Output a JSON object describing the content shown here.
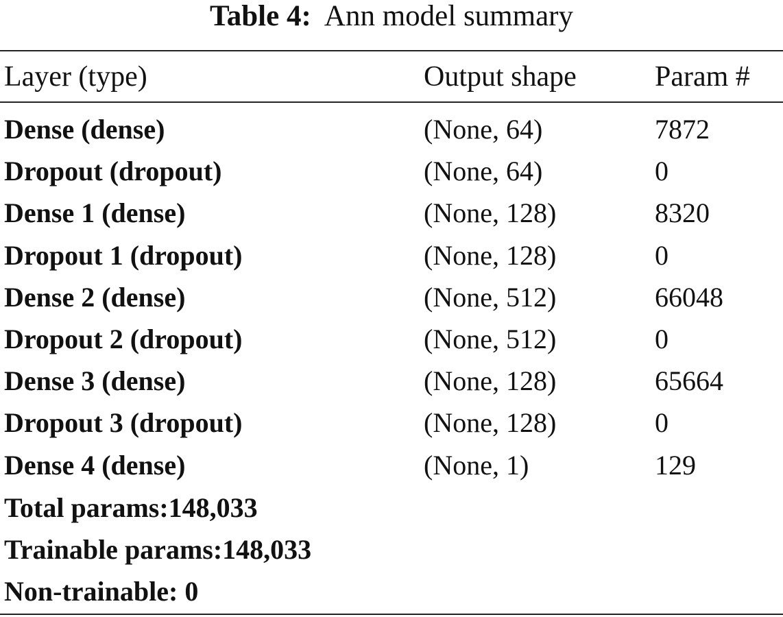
{
  "caption": {
    "label": "Table 4:",
    "title": "Ann model summary"
  },
  "table": {
    "headers": [
      "Layer (type)",
      "Output shape",
      "Param #"
    ],
    "rows": [
      [
        "Dense (dense)",
        "(None, 64)",
        "7872"
      ],
      [
        "Dropout (dropout)",
        "(None, 64)",
        "0"
      ],
      [
        "Dense 1 (dense)",
        "(None, 128)",
        "8320"
      ],
      [
        "Dropout 1 (dropout)",
        "(None, 128)",
        "0"
      ],
      [
        "Dense 2 (dense)",
        "(None, 512)",
        "66048"
      ],
      [
        "Dropout 2 (dropout)",
        "(None, 512)",
        "0"
      ],
      [
        "Dense 3 (dense)",
        "(None, 128)",
        "65664"
      ],
      [
        "Dropout 3 (dropout)",
        "(None, 128)",
        "0"
      ],
      [
        "Dense 4 (dense)",
        "(None, 1)",
        "129"
      ]
    ]
  },
  "summary": {
    "total": "Total params:148,033",
    "trainable": "Trainable params:148,033",
    "non_trainable": "Non-trainable: 0"
  }
}
